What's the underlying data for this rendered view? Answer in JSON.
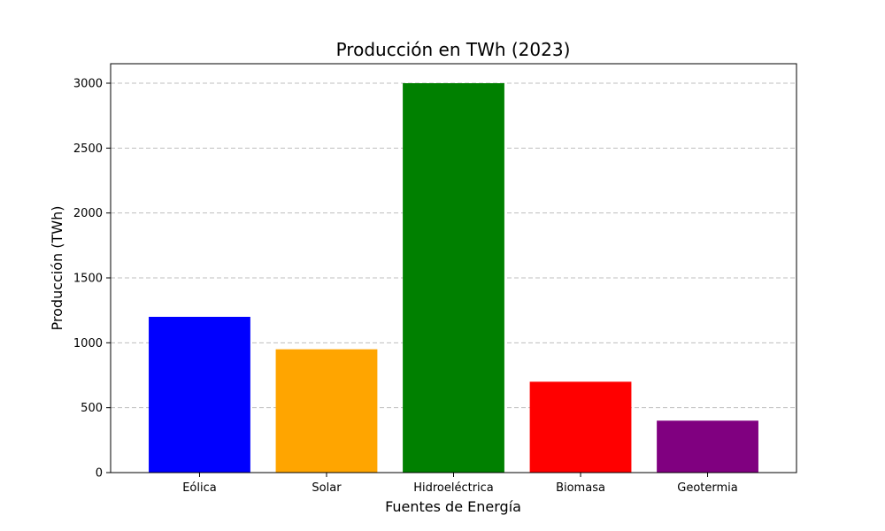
{
  "chart_data": {
    "type": "bar",
    "title": "Producción en TWh (2023)",
    "xlabel": "Fuentes de Energía",
    "ylabel": "Producción (TWh)",
    "categories": [
      "Eólica",
      "Solar",
      "Hidroeléctrica",
      "Biomasa",
      "Geotermia"
    ],
    "values": [
      1200,
      950,
      3000,
      700,
      400
    ],
    "colors": [
      "#0000ff",
      "#ffa500",
      "#008000",
      "#ff0000",
      "#800080"
    ],
    "ylim": [
      0,
      3150
    ],
    "yticks": [
      0,
      500,
      1000,
      1500,
      2000,
      2500,
      3000
    ],
    "grid": "y-dashed",
    "legend": "none"
  }
}
